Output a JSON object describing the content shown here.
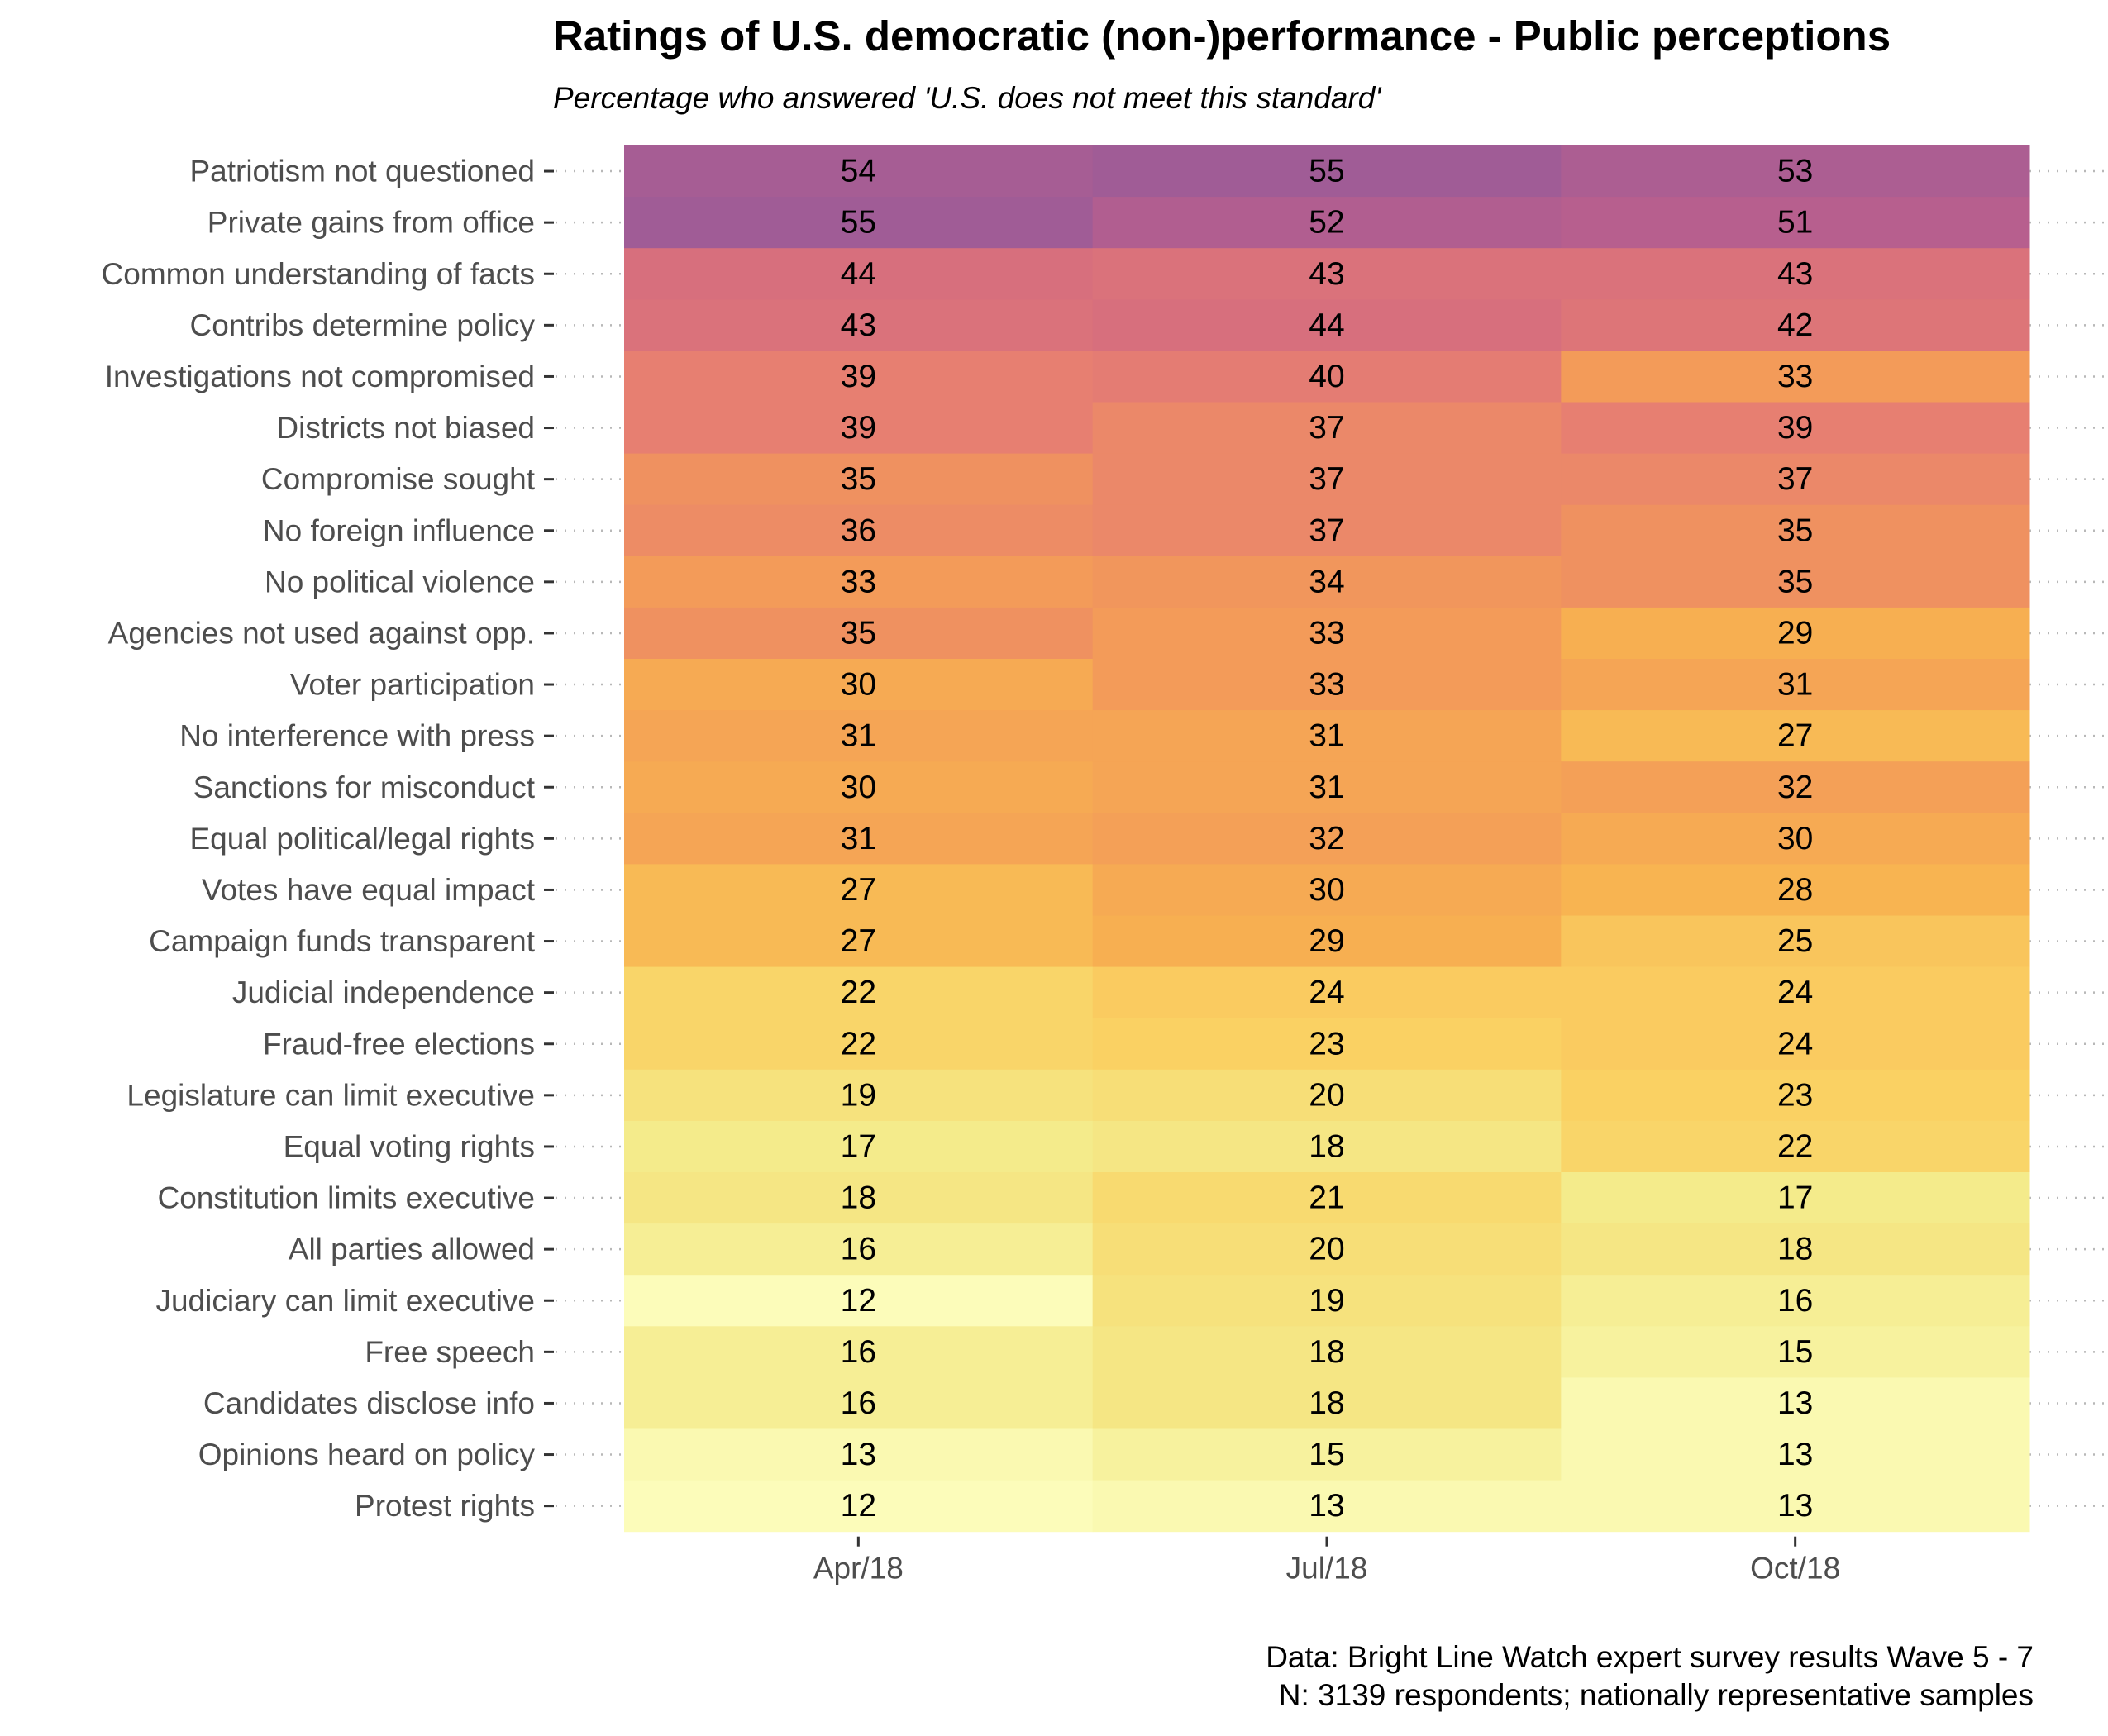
{
  "chart_data": {
    "type": "heatmap",
    "title": "Ratings of U.S. democratic (non-)performance - Public perceptions",
    "subtitle": "Percentage who answered 'U.S. does not meet this standard'",
    "caption_lines": [
      "Data: Bright Line Watch expert survey results Wave 5 - 7",
      "N: 3139 respondents; nationally representative samples"
    ],
    "x": [
      "Apr/18",
      "Jul/18",
      "Oct/18"
    ],
    "colorscale": "plasma (reversed: light yellow = low, purple = high)",
    "value_range": [
      12,
      55
    ],
    "rows": [
      {
        "label": "Patriotism not questioned",
        "values": [
          54,
          55,
          53
        ]
      },
      {
        "label": "Private gains from office",
        "values": [
          55,
          52,
          51
        ]
      },
      {
        "label": "Common understanding of facts",
        "values": [
          44,
          43,
          43
        ]
      },
      {
        "label": "Contribs determine policy",
        "values": [
          43,
          44,
          42
        ]
      },
      {
        "label": "Investigations not compromised",
        "values": [
          39,
          40,
          33
        ]
      },
      {
        "label": "Districts not biased",
        "values": [
          39,
          37,
          39
        ]
      },
      {
        "label": "Compromise sought",
        "values": [
          35,
          37,
          37
        ]
      },
      {
        "label": "No foreign influence",
        "values": [
          36,
          37,
          35
        ]
      },
      {
        "label": "No political violence",
        "values": [
          33,
          34,
          35
        ]
      },
      {
        "label": "Agencies not used against opp.",
        "values": [
          35,
          33,
          29
        ]
      },
      {
        "label": "Voter participation",
        "values": [
          30,
          33,
          31
        ]
      },
      {
        "label": "No interference with press",
        "values": [
          31,
          31,
          27
        ]
      },
      {
        "label": "Sanctions for misconduct",
        "values": [
          30,
          31,
          32
        ]
      },
      {
        "label": "Equal political/legal rights",
        "values": [
          31,
          32,
          30
        ]
      },
      {
        "label": "Votes have equal impact",
        "values": [
          27,
          30,
          28
        ]
      },
      {
        "label": "Campaign funds transparent",
        "values": [
          27,
          29,
          25
        ]
      },
      {
        "label": "Judicial independence",
        "values": [
          22,
          24,
          24
        ]
      },
      {
        "label": "Fraud-free elections",
        "values": [
          22,
          23,
          24
        ]
      },
      {
        "label": "Legislature can limit executive",
        "values": [
          19,
          20,
          23
        ]
      },
      {
        "label": "Equal voting rights",
        "values": [
          17,
          18,
          22
        ]
      },
      {
        "label": "Constitution limits executive",
        "values": [
          18,
          21,
          17
        ]
      },
      {
        "label": "All parties allowed",
        "values": [
          16,
          20,
          18
        ]
      },
      {
        "label": "Judiciary can limit executive",
        "values": [
          12,
          19,
          16
        ]
      },
      {
        "label": "Free speech",
        "values": [
          16,
          18,
          15
        ]
      },
      {
        "label": "Candidates disclose info",
        "values": [
          16,
          18,
          13
        ]
      },
      {
        "label": "Opinions heard on policy",
        "values": [
          13,
          15,
          13
        ]
      },
      {
        "label": "Protest rights",
        "values": [
          12,
          13,
          13
        ]
      }
    ],
    "legend": "none",
    "grid": "dotted horizontal lines at each row"
  }
}
